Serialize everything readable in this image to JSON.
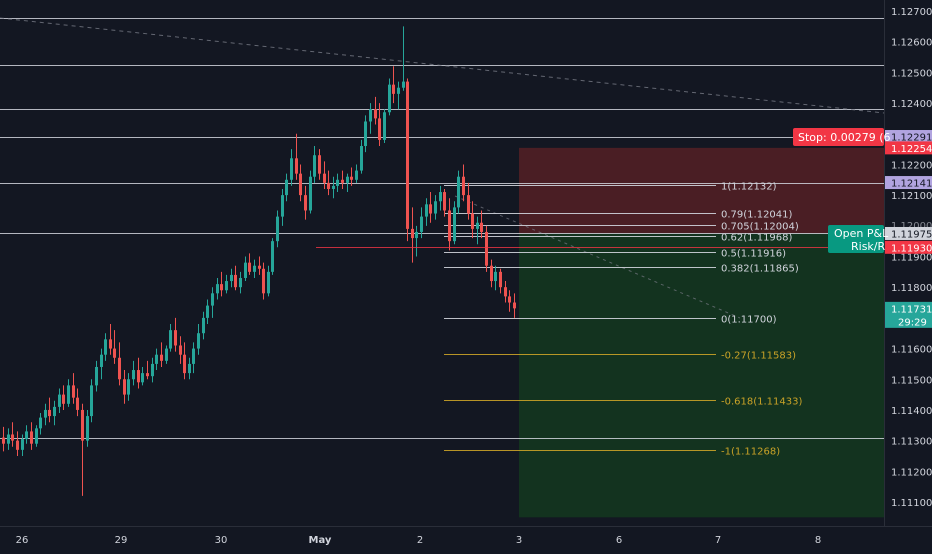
{
  "price_axis": {
    "labels": [
      "1.12700",
      "1.12600",
      "1.12500",
      "1.12400",
      "1.12200",
      "1.12100",
      "1.11900",
      "1.11800",
      "1.11600",
      "1.11500",
      "1.11400",
      "1.11300",
      "1.11200",
      "1.11100"
    ],
    "partial_label": "1.12000"
  },
  "time_axis": {
    "labels": [
      "26",
      "29",
      "30",
      "May",
      "2",
      "3",
      "6",
      "7",
      "8"
    ],
    "bold_label": "May"
  },
  "horizontal_levels": [
    1.12678,
    1.12525,
    1.1238,
    1.12291,
    1.12141,
    1.11975,
    1.1131
  ],
  "fib_levels": [
    {
      "label": "1(1.12132)",
      "value": 1.12132,
      "color": "#d1d4dc"
    },
    {
      "label": "0.79(1.12041)",
      "value": 1.12041,
      "color": "#d1d4dc"
    },
    {
      "label": "0.705(1.12004)",
      "value": 1.12004,
      "color": "#d1d4dc"
    },
    {
      "label": "0.62(1.11968)",
      "value": 1.11968,
      "color": "#d1d4dc"
    },
    {
      "label": "0.5(1.11916)",
      "value": 1.11916,
      "color": "#d1d4dc"
    },
    {
      "label": "0.382(1.11865)",
      "value": 1.11865,
      "color": "#d1d4dc"
    },
    {
      "label": "0(1.11700)",
      "value": 1.117,
      "color": "#d1d4dc"
    },
    {
      "label": "-0.27(1.11583)",
      "value": 1.11583,
      "color": "#c9a227"
    },
    {
      "label": "-0.618(1.11433)",
      "value": 1.11433,
      "color": "#c9a227"
    },
    {
      "label": "-1(1.11268)",
      "value": 1.11268,
      "color": "#c9a227"
    }
  ],
  "price_tags": [
    {
      "text": "1.12291",
      "value": 1.12291,
      "bg": "#b1a4e0",
      "fg": "#131722"
    },
    {
      "text": "1.12254",
      "value": 1.12254,
      "bg": "#f23645",
      "fg": "#ffffff"
    },
    {
      "text": "1.12141",
      "value": 1.12141,
      "bg": "#b1a4e0",
      "fg": "#131722"
    },
    {
      "text": "1.11975",
      "value": 1.11975,
      "bg": "#d1d4dc",
      "fg": "#131722"
    },
    {
      "text": "1.11930",
      "value": 1.1193,
      "bg": "#f23645",
      "fg": "#ffffff"
    },
    {
      "text": "1.11731",
      "value": 1.11731,
      "bg": "#26a69a",
      "fg": "#ffffff",
      "countdown": "29:29"
    }
  ],
  "position": {
    "stop_label": "Stop: 0.00279 (6",
    "open_pl_line1": "Open P&L",
    "open_pl_line2": "Risk/R",
    "stop_price": 1.12254,
    "entry_price": 1.11975,
    "target_price": 1.1105
  },
  "colors": {
    "background": "#131722",
    "up": "#26a69a",
    "down": "#ef5350",
    "grid_line": "#d1d4dc",
    "axis_text": "#d1d4dc",
    "stop_zone": "#4a1e24",
    "target_zone": "#13331f",
    "fib_gold": "#c9a227",
    "entry_line": "#f23645",
    "stop_tag": "#f23645",
    "pl_tag": "#089981"
  },
  "chart_data": {
    "type": "candlestick",
    "instrument_timeframe": "hourly (estimated)",
    "ylim": [
      1.1106,
      1.1275
    ],
    "candles": [
      [
        1.1131,
        1.11345,
        1.11265,
        1.1129
      ],
      [
        1.1129,
        1.1134,
        1.1127,
        1.1132
      ],
      [
        1.1132,
        1.1136,
        1.1128,
        1.113
      ],
      [
        1.113,
        1.1133,
        1.1125,
        1.1127
      ],
      [
        1.1127,
        1.1132,
        1.1125,
        1.11305
      ],
      [
        1.11305,
        1.1135,
        1.1129,
        1.1133
      ],
      [
        1.1133,
        1.1136,
        1.1127,
        1.1129
      ],
      [
        1.1129,
        1.1135,
        1.1128,
        1.1134
      ],
      [
        1.1134,
        1.1139,
        1.1132,
        1.11375
      ],
      [
        1.11375,
        1.1142,
        1.1135,
        1.114
      ],
      [
        1.114,
        1.1144,
        1.1136,
        1.1138
      ],
      [
        1.1138,
        1.1143,
        1.1135,
        1.1141
      ],
      [
        1.1141,
        1.1147,
        1.1139,
        1.1145
      ],
      [
        1.1145,
        1.1148,
        1.114,
        1.1142
      ],
      [
        1.1142,
        1.115,
        1.1141,
        1.1148
      ],
      [
        1.1148,
        1.1152,
        1.1142,
        1.1144
      ],
      [
        1.1144,
        1.1147,
        1.1138,
        1.114
      ],
      [
        1.114,
        1.1142,
        1.1112,
        1.113
      ],
      [
        1.113,
        1.114,
        1.1128,
        1.1138
      ],
      [
        1.1138,
        1.115,
        1.1136,
        1.1148
      ],
      [
        1.1148,
        1.1156,
        1.1146,
        1.1154
      ],
      [
        1.1154,
        1.116,
        1.115,
        1.1158
      ],
      [
        1.1158,
        1.1165,
        1.1156,
        1.1163
      ],
      [
        1.1163,
        1.1168,
        1.1158,
        1.116
      ],
      [
        1.116,
        1.1166,
        1.1155,
        1.1157
      ],
      [
        1.1157,
        1.1162,
        1.1148,
        1.115
      ],
      [
        1.115,
        1.1153,
        1.1142,
        1.1145
      ],
      [
        1.1145,
        1.1152,
        1.1143,
        1.115
      ],
      [
        1.115,
        1.1156,
        1.1148,
        1.1153
      ],
      [
        1.1153,
        1.1157,
        1.1147,
        1.1149
      ],
      [
        1.1149,
        1.1154,
        1.1148,
        1.1152
      ],
      [
        1.1152,
        1.1156,
        1.115,
        1.1151
      ],
      [
        1.1151,
        1.1157,
        1.1149,
        1.1155
      ],
      [
        1.1155,
        1.116,
        1.1153,
        1.1158
      ],
      [
        1.1158,
        1.1162,
        1.1154,
        1.1156
      ],
      [
        1.1156,
        1.1161,
        1.1155,
        1.116
      ],
      [
        1.116,
        1.1168,
        1.1159,
        1.1166
      ],
      [
        1.1166,
        1.117,
        1.1159,
        1.1161
      ],
      [
        1.1161,
        1.1164,
        1.1155,
        1.1158
      ],
      [
        1.1158,
        1.1162,
        1.115,
        1.1152
      ],
      [
        1.1152,
        1.1157,
        1.115,
        1.1155
      ],
      [
        1.1155,
        1.1162,
        1.1152,
        1.116
      ],
      [
        1.116,
        1.1168,
        1.1158,
        1.1165
      ],
      [
        1.1165,
        1.1172,
        1.1163,
        1.117
      ],
      [
        1.117,
        1.1176,
        1.1168,
        1.1174
      ],
      [
        1.1174,
        1.118,
        1.117,
        1.1178
      ],
      [
        1.1178,
        1.1183,
        1.1176,
        1.1181
      ],
      [
        1.1181,
        1.1185,
        1.1177,
        1.1179
      ],
      [
        1.1179,
        1.1184,
        1.1178,
        1.1182
      ],
      [
        1.1182,
        1.1186,
        1.118,
        1.1184
      ],
      [
        1.1184,
        1.1187,
        1.1179,
        1.118
      ],
      [
        1.118,
        1.1185,
        1.1178,
        1.1183
      ],
      [
        1.1183,
        1.119,
        1.1182,
        1.1188
      ],
      [
        1.1188,
        1.1191,
        1.1184,
        1.1185
      ],
      [
        1.1185,
        1.1189,
        1.1183,
        1.1187
      ],
      [
        1.1187,
        1.119,
        1.1184,
        1.1186
      ],
      [
        1.1186,
        1.1188,
        1.1176,
        1.1178
      ],
      [
        1.1178,
        1.1187,
        1.1177,
        1.1185
      ],
      [
        1.1185,
        1.1196,
        1.1184,
        1.1195
      ],
      [
        1.1195,
        1.1205,
        1.1193,
        1.1203
      ],
      [
        1.1203,
        1.1212,
        1.12,
        1.121
      ],
      [
        1.121,
        1.1217,
        1.1208,
        1.1215
      ],
      [
        1.1215,
        1.1225,
        1.1213,
        1.1222
      ],
      [
        1.1222,
        1.123,
        1.1215,
        1.1217
      ],
      [
        1.1217,
        1.122,
        1.1208,
        1.121
      ],
      [
        1.121,
        1.1213,
        1.1202,
        1.1205
      ],
      [
        1.1205,
        1.1218,
        1.1204,
        1.1216
      ],
      [
        1.1216,
        1.1226,
        1.1214,
        1.1223
      ],
      [
        1.1223,
        1.1225,
        1.1215,
        1.1217
      ],
      [
        1.1217,
        1.1221,
        1.1212,
        1.1214
      ],
      [
        1.1214,
        1.1218,
        1.121,
        1.1212
      ],
      [
        1.1212,
        1.1216,
        1.1209,
        1.1213
      ],
      [
        1.1213,
        1.1217,
        1.1211,
        1.1215
      ],
      [
        1.1215,
        1.1218,
        1.1212,
        1.1214
      ],
      [
        1.1214,
        1.1217,
        1.1211,
        1.1216
      ],
      [
        1.1216,
        1.1219,
        1.1213,
        1.1215
      ],
      [
        1.1215,
        1.122,
        1.1214,
        1.1218
      ],
      [
        1.1218,
        1.1228,
        1.1217,
        1.1226
      ],
      [
        1.1226,
        1.1236,
        1.1224,
        1.1234
      ],
      [
        1.1234,
        1.124,
        1.123,
        1.1238
      ],
      [
        1.1238,
        1.1242,
        1.1233,
        1.1235
      ],
      [
        1.1235,
        1.124,
        1.1226,
        1.1228
      ],
      [
        1.1228,
        1.1238,
        1.1227,
        1.1237
      ],
      [
        1.1237,
        1.1248,
        1.1236,
        1.1246
      ],
      [
        1.1246,
        1.1252,
        1.124,
        1.1243
      ],
      [
        1.1243,
        1.1247,
        1.1238,
        1.1245
      ],
      [
        1.1245,
        1.1265,
        1.1244,
        1.1247
      ],
      [
        1.1247,
        1.1248,
        1.1195,
        1.1199
      ],
      [
        1.1199,
        1.1206,
        1.1188,
        1.1196
      ],
      [
        1.1196,
        1.12,
        1.119,
        1.1198
      ],
      [
        1.1198,
        1.1206,
        1.1196,
        1.1203
      ],
      [
        1.1203,
        1.1209,
        1.12,
        1.1207
      ],
      [
        1.1207,
        1.1211,
        1.1201,
        1.1204
      ],
      [
        1.1204,
        1.121,
        1.1202,
        1.1208
      ],
      [
        1.1208,
        1.1213,
        1.1205,
        1.1211
      ],
      [
        1.1211,
        1.1212,
        1.1203,
        1.1205
      ],
      [
        1.1205,
        1.1209,
        1.1192,
        1.1195
      ],
      [
        1.1195,
        1.1208,
        1.1194,
        1.1206
      ],
      [
        1.1206,
        1.1218,
        1.1204,
        1.1216
      ],
      [
        1.1216,
        1.122,
        1.1208,
        1.121
      ],
      [
        1.121,
        1.1214,
        1.1202,
        1.1204
      ],
      [
        1.1204,
        1.1208,
        1.1196,
        1.1199
      ],
      [
        1.1199,
        1.1203,
        1.1194,
        1.1201
      ],
      [
        1.1201,
        1.1205,
        1.1196,
        1.1198
      ],
      [
        1.1198,
        1.12,
        1.1185,
        1.1187
      ],
      [
        1.1187,
        1.1189,
        1.118,
        1.1182
      ],
      [
        1.1182,
        1.1187,
        1.1179,
        1.1185
      ],
      [
        1.1185,
        1.1186,
        1.1178,
        1.118
      ],
      [
        1.118,
        1.1182,
        1.1175,
        1.1177
      ],
      [
        1.1177,
        1.1179,
        1.1172,
        1.1175
      ],
      [
        1.1175,
        1.1178,
        1.117,
        1.11731
      ]
    ]
  }
}
